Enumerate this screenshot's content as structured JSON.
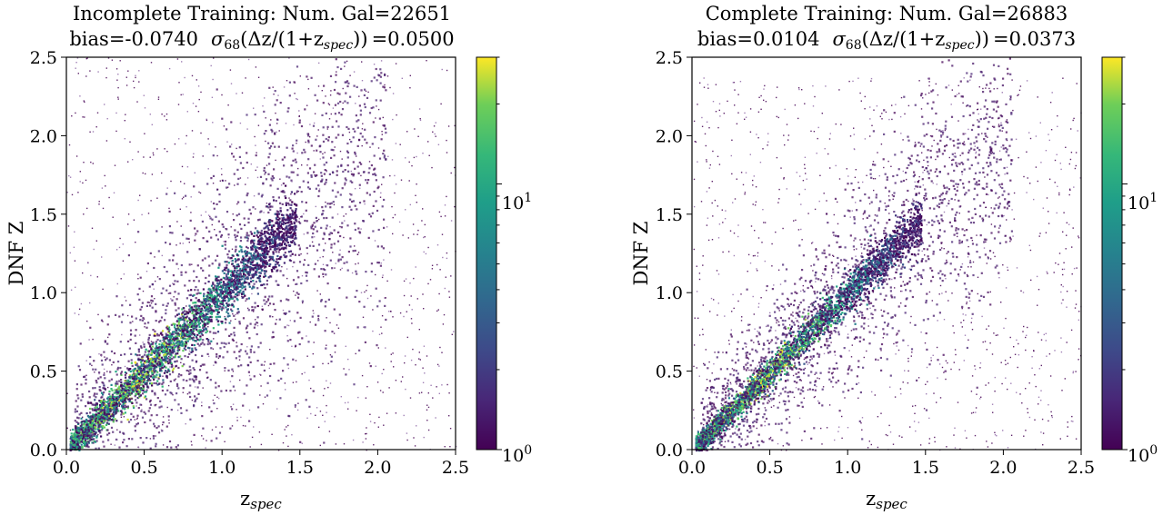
{
  "colors": {
    "colormap": "viridis",
    "frame": "#000000",
    "background": "#ffffff"
  },
  "chart_data": [
    {
      "type": "heatmap",
      "title": "Incomplete Training: Num. Gal=22651",
      "subtitle_bias": "bias=-0.0740",
      "subtitle_sigma_sym": "σ",
      "subtitle_sigma_sub": "68",
      "subtitle_sigma_expr": "(Δz/(1+z",
      "subtitle_sigma_expr_sub": "spec",
      "subtitle_sigma_close": "))",
      "subtitle_sigma_value": "=0.0500",
      "num_galaxies": 22651,
      "bias": -0.074,
      "sigma68": 0.05,
      "xlabel_main": "z",
      "xlabel_sub": "spec",
      "ylabel": "DNF Z",
      "xlim": [
        0.0,
        2.5
      ],
      "ylim": [
        0.0,
        2.5
      ],
      "xticks": [
        "0.0",
        "0.5",
        "1.0",
        "1.5",
        "2.0",
        "2.5"
      ],
      "yticks": [
        "0.0",
        "0.5",
        "1.0",
        "1.5",
        "2.0",
        "2.5"
      ],
      "colorbar": {
        "scale": "log",
        "range": [
          1,
          30
        ],
        "tick_base": "10",
        "tick_exponents": [
          "0",
          "1"
        ]
      },
      "grid": false
    },
    {
      "type": "heatmap",
      "title": "Complete Training: Num. Gal=26883",
      "subtitle_bias": "bias=0.0104",
      "subtitle_sigma_sym": "σ",
      "subtitle_sigma_sub": "68",
      "subtitle_sigma_expr": "(Δz/(1+z",
      "subtitle_sigma_expr_sub": "spec",
      "subtitle_sigma_close": "))",
      "subtitle_sigma_value": "=0.0373",
      "num_galaxies": 26883,
      "bias": 0.0104,
      "sigma68": 0.0373,
      "xlabel_main": "z",
      "xlabel_sub": "spec",
      "ylabel": "DNF Z",
      "xlim": [
        0.0,
        2.5
      ],
      "ylim": [
        0.0,
        2.5
      ],
      "xticks": [
        "0.0",
        "0.5",
        "1.0",
        "1.5",
        "2.0",
        "2.5"
      ],
      "yticks": [
        "0.0",
        "0.5",
        "1.0",
        "1.5",
        "2.0",
        "2.5"
      ],
      "colorbar": {
        "scale": "log",
        "range": [
          1,
          30
        ],
        "tick_base": "10",
        "tick_exponents": [
          "0",
          "1"
        ]
      },
      "grid": false
    }
  ]
}
